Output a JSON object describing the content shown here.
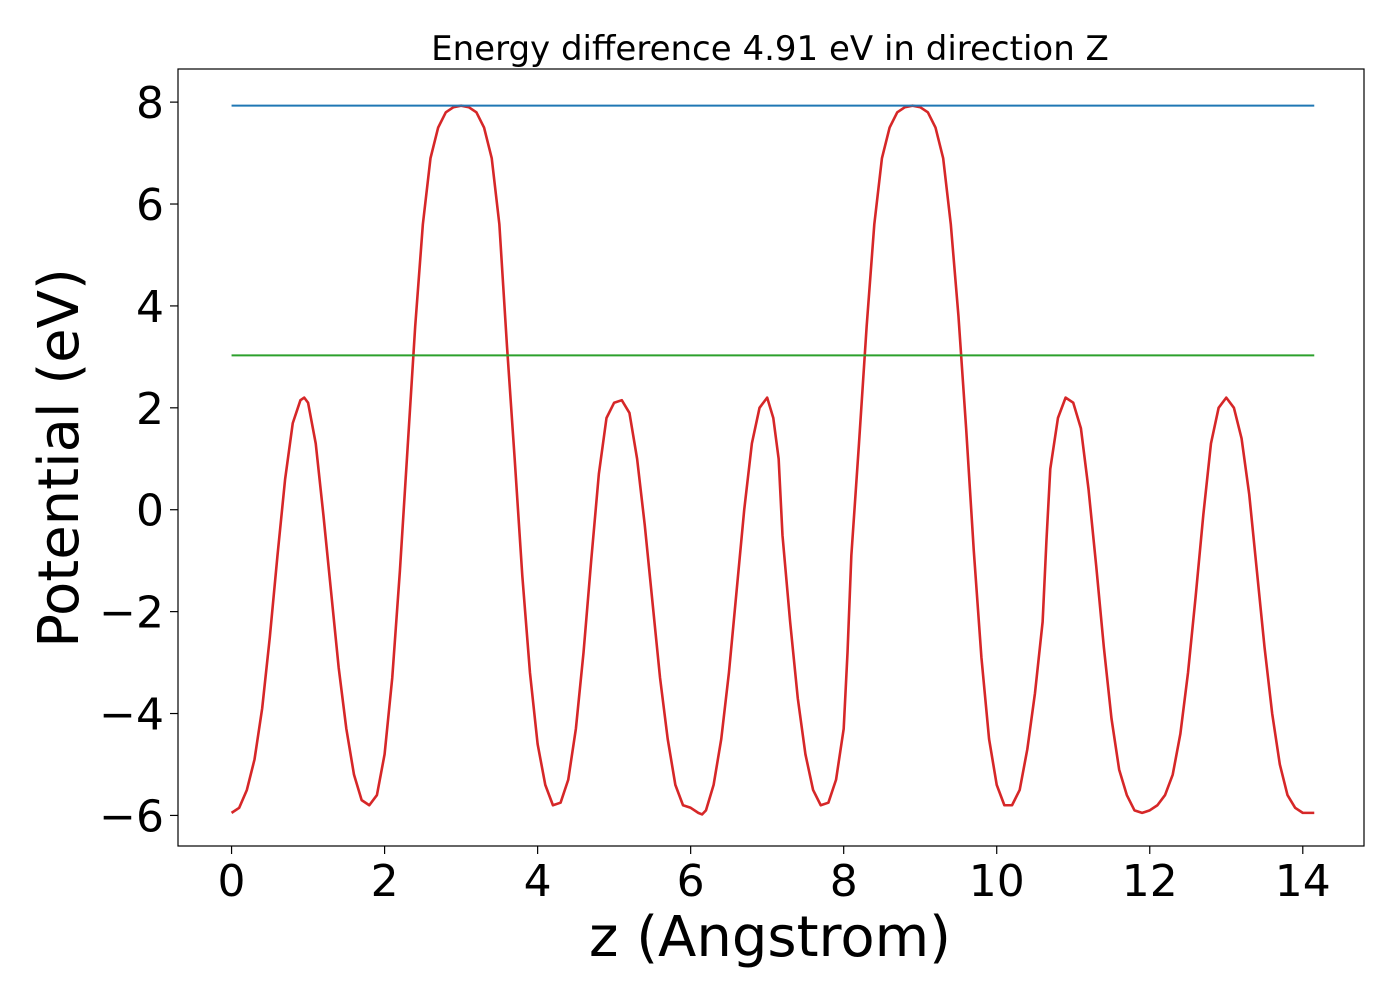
{
  "chart_data": {
    "type": "line",
    "title": "Energy difference 4.91 eV in direction Z",
    "xlabel": "z (Angstrom)",
    "ylabel": "Potential (eV)",
    "xlim": [
      -0.7,
      14.8
    ],
    "ylim": [
      -6.6,
      8.65
    ],
    "xticks": [
      0,
      2,
      4,
      6,
      8,
      10,
      12,
      14
    ],
    "xtick_labels": [
      "0",
      "2",
      "4",
      "6",
      "8",
      "10",
      "12",
      "14"
    ],
    "yticks": [
      -6,
      -4,
      -2,
      0,
      2,
      4,
      6,
      8
    ],
    "ytick_labels": [
      "−6",
      "−4",
      "−2",
      "0",
      "2",
      "4",
      "6",
      "8"
    ],
    "grid": false,
    "legend": "none",
    "series": [
      {
        "color": "#d62728",
        "style": "line",
        "x": [
          0.0,
          0.1,
          0.2,
          0.3,
          0.4,
          0.5,
          0.6,
          0.7,
          0.8,
          0.9,
          0.95,
          1.0,
          1.1,
          1.2,
          1.3,
          1.4,
          1.5,
          1.6,
          1.7,
          1.8,
          1.9,
          2.0,
          2.1,
          2.2,
          2.3,
          2.4,
          2.5,
          2.6,
          2.7,
          2.8,
          2.9,
          3.0,
          3.1,
          3.2,
          3.3,
          3.4,
          3.5,
          3.55,
          3.6,
          3.7,
          3.8,
          3.9,
          4.0,
          4.1,
          4.2,
          4.3,
          4.4,
          4.5,
          4.6,
          4.7,
          4.8,
          4.9,
          5.0,
          5.1,
          5.2,
          5.3,
          5.4,
          5.5,
          5.6,
          5.7,
          5.8,
          5.9,
          6.0,
          6.1,
          6.15,
          6.2,
          6.3,
          6.4,
          6.5,
          6.6,
          6.7,
          6.8,
          6.9,
          7.0,
          7.08,
          7.15,
          7.2,
          7.3,
          7.4,
          7.5,
          7.6,
          7.7,
          7.8,
          7.9,
          8.0,
          8.05,
          8.1,
          8.2,
          8.3,
          8.4,
          8.5,
          8.6,
          8.7,
          8.8,
          8.9,
          9.0,
          9.1,
          9.2,
          9.3,
          9.4,
          9.5,
          9.6,
          9.7,
          9.8,
          9.9,
          10.0,
          10.1,
          10.2,
          10.3,
          10.4,
          10.5,
          10.6,
          10.65,
          10.7,
          10.8,
          10.9,
          11.0,
          11.1,
          11.2,
          11.3,
          11.4,
          11.5,
          11.6,
          11.7,
          11.8,
          11.9,
          12.0,
          12.1,
          12.2,
          12.3,
          12.4,
          12.5,
          12.6,
          12.7,
          12.8,
          12.9,
          13.0,
          13.1,
          13.2,
          13.3,
          13.4,
          13.5,
          13.6,
          13.7,
          13.8,
          13.9,
          14.0,
          14.1,
          14.15
        ],
        "y": [
          -5.95,
          -5.85,
          -5.5,
          -4.9,
          -3.9,
          -2.5,
          -0.9,
          0.6,
          1.7,
          2.15,
          2.2,
          2.1,
          1.3,
          -0.1,
          -1.6,
          -3.1,
          -4.3,
          -5.2,
          -5.7,
          -5.8,
          -5.6,
          -4.8,
          -3.3,
          -1.2,
          1.2,
          3.6,
          5.6,
          6.9,
          7.5,
          7.8,
          7.9,
          7.93,
          7.9,
          7.8,
          7.5,
          6.9,
          5.6,
          4.4,
          3.2,
          1.0,
          -1.3,
          -3.2,
          -4.6,
          -5.4,
          -5.8,
          -5.75,
          -5.3,
          -4.3,
          -2.8,
          -1.0,
          0.7,
          1.8,
          2.1,
          2.15,
          1.9,
          1.0,
          -0.3,
          -1.8,
          -3.3,
          -4.5,
          -5.4,
          -5.8,
          -5.85,
          -5.95,
          -5.98,
          -5.9,
          -5.4,
          -4.5,
          -3.2,
          -1.6,
          0.0,
          1.3,
          2.0,
          2.2,
          1.8,
          1.0,
          -0.5,
          -2.2,
          -3.7,
          -4.8,
          -5.5,
          -5.8,
          -5.75,
          -5.3,
          -4.3,
          -2.8,
          -0.9,
          1.3,
          3.6,
          5.6,
          6.9,
          7.5,
          7.8,
          7.9,
          7.93,
          7.9,
          7.8,
          7.5,
          6.9,
          5.6,
          3.8,
          1.6,
          -0.8,
          -2.9,
          -4.5,
          -5.4,
          -5.8,
          -5.8,
          -5.5,
          -4.7,
          -3.6,
          -2.2,
          -0.6,
          0.8,
          1.8,
          2.2,
          2.1,
          1.6,
          0.4,
          -1.1,
          -2.7,
          -4.1,
          -5.1,
          -5.6,
          -5.9,
          -5.95,
          -5.9,
          -5.8,
          -5.6,
          -5.2,
          -4.4,
          -3.2,
          -1.7,
          -0.1,
          1.3,
          2.0,
          2.2,
          2.0,
          1.4,
          0.3,
          -1.2,
          -2.7,
          -4.0,
          -5.0,
          -5.6,
          -5.85,
          -5.95,
          -5.95,
          -5.95
        ],
        "x_drawn": [
          0.0,
          0.1,
          0.2,
          0.3,
          0.4,
          0.5,
          0.6,
          0.7,
          0.8,
          0.9,
          0.95,
          1.0,
          1.1,
          1.2,
          1.3,
          1.4,
          1.5,
          1.6,
          1.7,
          1.8,
          1.9,
          2.0,
          2.1,
          2.2,
          2.3,
          2.4,
          2.5,
          2.6,
          2.7,
          2.8,
          2.9,
          3.0,
          3.1,
          3.2,
          3.3,
          3.4,
          3.5,
          3.55,
          3.6,
          3.7,
          3.8,
          3.9,
          4.0,
          4.1,
          4.2,
          4.3,
          4.4,
          4.5,
          4.6,
          4.7,
          4.8,
          4.9,
          5.0,
          5.1,
          5.2,
          5.3,
          5.4,
          5.5,
          5.6,
          5.7,
          5.8,
          5.9,
          6.0,
          6.1,
          6.15,
          6.2,
          6.3,
          6.4,
          6.5,
          6.6,
          6.7,
          6.8,
          6.9,
          7.0,
          7.08,
          7.15,
          7.2,
          7.3,
          7.4,
          7.5,
          7.6,
          7.7,
          7.8,
          7.9,
          8.0,
          8.05,
          8.1,
          8.2,
          8.3,
          8.4,
          8.5,
          8.6,
          8.7,
          8.8,
          8.9,
          9.0,
          9.1,
          9.2,
          9.3,
          9.4,
          9.5,
          9.6,
          9.7,
          9.8,
          9.9,
          10.0,
          10.1,
          10.2,
          10.3,
          10.4,
          10.5,
          10.6,
          10.65,
          10.7,
          10.8,
          10.9,
          11.0,
          11.1,
          11.2,
          11.3,
          11.4,
          11.5,
          11.6,
          11.7,
          11.8,
          11.9,
          12.0,
          12.1,
          12.2,
          12.3,
          12.4,
          12.5,
          12.6,
          12.7,
          12.8,
          12.9,
          13.0,
          13.1,
          13.2,
          13.3,
          13.4,
          13.5,
          13.6,
          13.7,
          13.8,
          13.9,
          14.0,
          14.1,
          14.15
        ]
      },
      {
        "color": "#1f77b4",
        "style": "hline",
        "x": [
          0.0,
          14.15
        ],
        "y": [
          7.93,
          7.93
        ]
      },
      {
        "color": "#2ca02c",
        "style": "hline",
        "x": [
          0.0,
          14.15
        ],
        "y": [
          3.03,
          3.03
        ]
      }
    ]
  }
}
